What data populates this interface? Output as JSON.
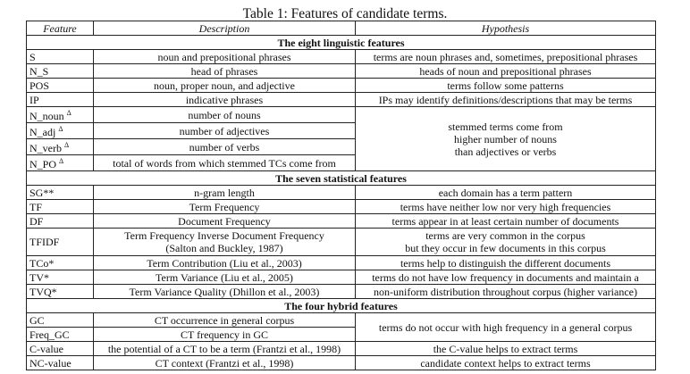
{
  "caption": "Table 1: Features of candidate terms.",
  "headers": {
    "feature": "Feature",
    "description": "Description",
    "hypothesis": "Hypothesis"
  },
  "sections": {
    "linguistic": "The eight linguistic features",
    "statistical": "The seven statistical features",
    "hybrid": "The four hybrid features"
  },
  "rows": {
    "s": {
      "feature": "S",
      "description": "noun and prepositional phrases",
      "hypothesis": "terms are noun phrases and, sometimes, prepositional phrases"
    },
    "n_s": {
      "feature": "N_S",
      "description": "head of phrases",
      "hypothesis": "heads of noun and prepositional phrases"
    },
    "pos": {
      "feature": "POS",
      "description": "noun, proper noun, and adjective",
      "hypothesis": "terms follow some patterns"
    },
    "ip": {
      "feature": "IP",
      "description": "indicative phrases",
      "hypothesis": "IPs may identify definitions/descriptions that may be terms"
    },
    "n_noun": {
      "feature": "N_noun",
      "mark": "Δ",
      "description": "number of nouns"
    },
    "n_adj": {
      "feature": "N_adj",
      "mark": "Δ",
      "description": "number of adjectives"
    },
    "n_verb": {
      "feature": "N_verb",
      "mark": "Δ",
      "description": "number of verbs"
    },
    "n_po": {
      "feature": "N_PO",
      "mark": "Δ",
      "description": "total of words from which stemmed TCs come from"
    },
    "stemmed_hypothesis": {
      "line1": "stemmed terms come from",
      "line2": "higher number of nouns",
      "line3": "than adjectives or verbs"
    },
    "sg": {
      "feature": "SG**",
      "description": "n-gram length",
      "hypothesis": "each domain has a term pattern"
    },
    "tf": {
      "feature": "TF",
      "description": "Term Frequency",
      "hypothesis": "terms have neither low nor very high frequencies"
    },
    "df": {
      "feature": "DF",
      "description": "Document Frequency",
      "hypothesis": "terms appear in at least certain number of documents"
    },
    "tfidf": {
      "feature": "TFIDF",
      "description1": "Term Frequency Inverse Document Frequency",
      "description2": "(Salton and Buckley, 1987)",
      "hypothesis1": "terms are very common in the corpus",
      "hypothesis2": "but they occur in few documents in this corpus"
    },
    "tco": {
      "feature": "TCo*",
      "description": "Term Contribution (Liu et al., 2003)",
      "hypothesis": "terms help to distinguish the different documents"
    },
    "tv": {
      "feature": "TV*",
      "description": "Term Variance (Liu et al., 2005)",
      "hypothesis": "terms do not have low frequency in documents and maintain a"
    },
    "tvq": {
      "feature": "TVQ*",
      "description": "Term Variance Quality (Dhillon et al., 2003)",
      "hypothesis": "non-uniform distribution throughout corpus (higher variance)"
    },
    "gc": {
      "feature": "GC",
      "description": "CT occurrence in general corpus"
    },
    "freq_gc": {
      "feature": "Freq_GC",
      "description": "CT frequency in GC"
    },
    "gc_hypothesis": "terms do not occur with high frequency in a general corpus",
    "c_value": {
      "feature": "C-value",
      "description": "the potential of a CT to be a term (Frantzi et al., 1998)",
      "hypothesis": "the C-value helps to extract terms"
    },
    "nc_value": {
      "feature": "NC-value",
      "description": "CT context (Frantzi et al., 1998)",
      "hypothesis": "candidate context helps to extract terms"
    }
  }
}
